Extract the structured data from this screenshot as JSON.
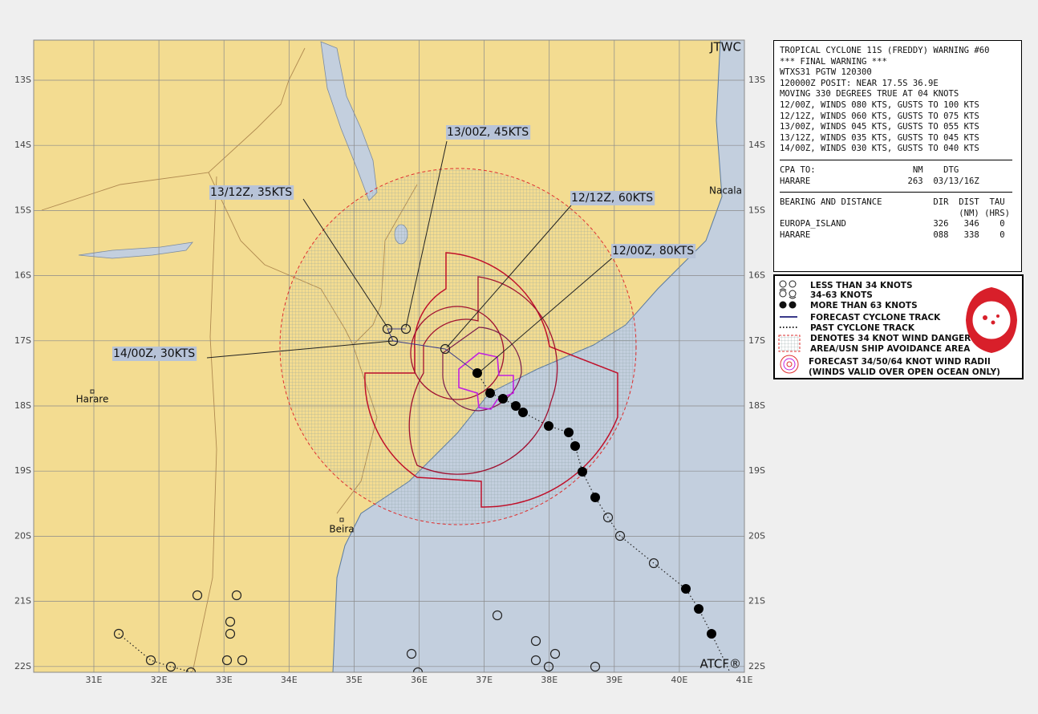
{
  "map": {
    "corner_labels": {
      "agency": "JTWC",
      "system": "ATCF®"
    },
    "lat_labels": [
      "13S",
      "14S",
      "15S",
      "16S",
      "17S",
      "18S",
      "19S",
      "20S",
      "21S",
      "22S"
    ],
    "lon_labels": [
      "31E",
      "32E",
      "33E",
      "34E",
      "35E",
      "36E",
      "37E",
      "38E",
      "39E",
      "40E",
      "41E"
    ],
    "places": [
      "Nacala",
      "Harare",
      "Beira"
    ],
    "forecast_labels": [
      "13/00Z, 45KTS",
      "13/12Z, 35KTS",
      "12/12Z, 60KTS",
      "12/00Z, 80KTS",
      "14/00Z, 30KTS"
    ]
  },
  "warning": {
    "header": [
      "TROPICAL CYCLONE 11S (FREDDY) WARNING #60",
      "*** FINAL WARNING ***",
      "WTXS31 PGTW 120300",
      "120000Z POSIT: NEAR 17.5S 36.9E",
      "MOVING 330 DEGREES TRUE AT 04 KNOTS",
      "12/00Z, WINDS 080 KTS, GUSTS TO 100 KTS",
      "12/12Z, WINDS 060 KTS, GUSTS TO 075 KTS",
      "13/00Z, WINDS 045 KTS, GUSTS TO 055 KTS",
      "13/12Z, WINDS 035 KTS, GUSTS TO 045 KTS",
      "14/00Z, WINDS 030 KTS, GUSTS TO 040 KTS"
    ],
    "cpa": [
      "CPA TO:                   NM    DTG",
      "HARARE                   263  03/13/16Z"
    ],
    "bearing": [
      "BEARING AND DISTANCE          DIR  DIST  TAU",
      "                                   (NM) (HRS)",
      "EUROPA_ISLAND                 326   346    0",
      "HARARE                        088   338    0"
    ]
  },
  "legend": [
    "LESS THAN 34 KNOTS",
    "34-63 KNOTS",
    "MORE THAN 63 KNOTS",
    "FORECAST CYCLONE TRACK",
    "PAST CYCLONE TRACK",
    "DENOTES 34 KNOT WIND DANGER",
    "AREA/USN SHIP AVOIDANCE AREA",
    "FORECAST 34/50/64 KNOT WIND RADII",
    "(WINDS VALID OVER OPEN OCEAN ONLY)"
  ]
}
